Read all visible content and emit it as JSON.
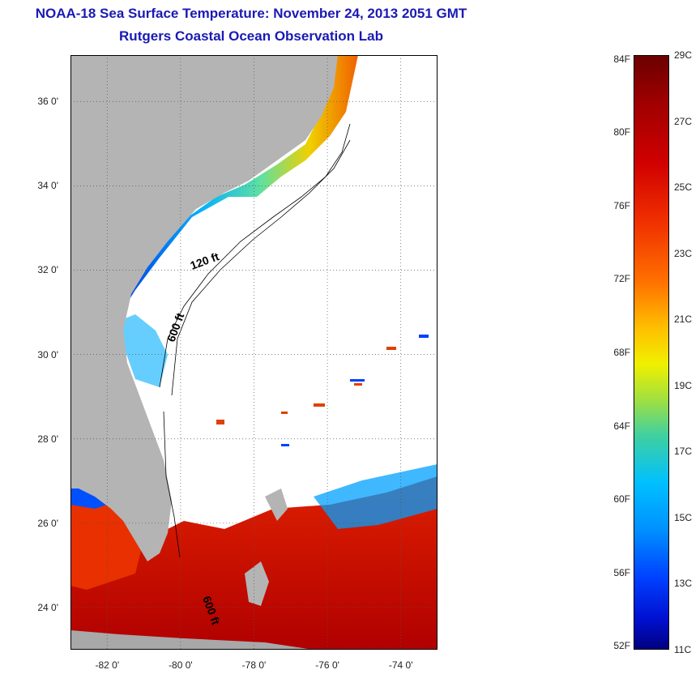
{
  "title": "NOAA-18 Sea Surface Temperature:  November 24, 2013 2051 GMT",
  "subtitle": "Rutgers Coastal Ocean Observation Lab",
  "axes": {
    "lat_ticks": [
      "36 0'",
      "34 0'",
      "32 0'",
      "30 0'",
      "28 0'",
      "26 0'",
      "24 0'"
    ],
    "lon_ticks": [
      "-82 0'",
      "-80 0'",
      "-78 0'",
      "-76 0'",
      "-74 0'"
    ],
    "lat_range": [
      23,
      37.1
    ],
    "lon_range": [
      -83,
      -73
    ]
  },
  "contour_labels": {
    "c120": "120 ft",
    "c600a": "600 ft",
    "c600b": "600 ft"
  },
  "colorbar": {
    "fahrenheit": [
      "84F",
      "80F",
      "76F",
      "72F",
      "68F",
      "64F",
      "60F",
      "56F",
      "52F"
    ],
    "celsius": [
      "29C",
      "27C",
      "25C",
      "23C",
      "21C",
      "19C",
      "17C",
      "15C",
      "13C",
      "11C"
    ],
    "min_c": 11,
    "max_c": 29
  },
  "colors": {
    "land": "#b4b4b4",
    "title": "#1a1ab4",
    "warm": "#d01010",
    "cold": "#0020c0"
  }
}
